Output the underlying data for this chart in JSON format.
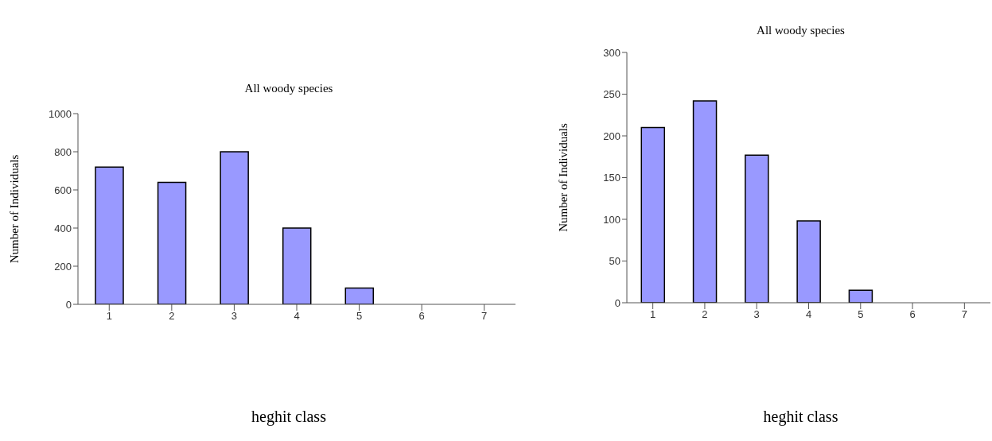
{
  "chart_data": [
    {
      "type": "bar",
      "title": "All woody species",
      "xlabel": "heghit class",
      "ylabel": "Number of Individuals",
      "categories": [
        "1",
        "2",
        "3",
        "4",
        "5",
        "6",
        "7"
      ],
      "values": [
        720,
        640,
        800,
        400,
        85,
        0,
        0
      ],
      "color": "#9999ff",
      "ylim": [
        0,
        1000
      ],
      "yticks": [
        0,
        200,
        400,
        600,
        800,
        1000
      ],
      "grid": false,
      "legend": false
    },
    {
      "type": "bar",
      "title": "All woody species",
      "xlabel": "heghit class",
      "ylabel": "Number of Individuals",
      "categories": [
        "1",
        "2",
        "3",
        "4",
        "5",
        "6",
        "7"
      ],
      "values": [
        210,
        242,
        177,
        98,
        15,
        0,
        0
      ],
      "color": "#9999ff",
      "ylim": [
        0,
        300
      ],
      "yticks": [
        0,
        50,
        100,
        150,
        200,
        250,
        300
      ],
      "grid": false,
      "legend": false
    }
  ]
}
